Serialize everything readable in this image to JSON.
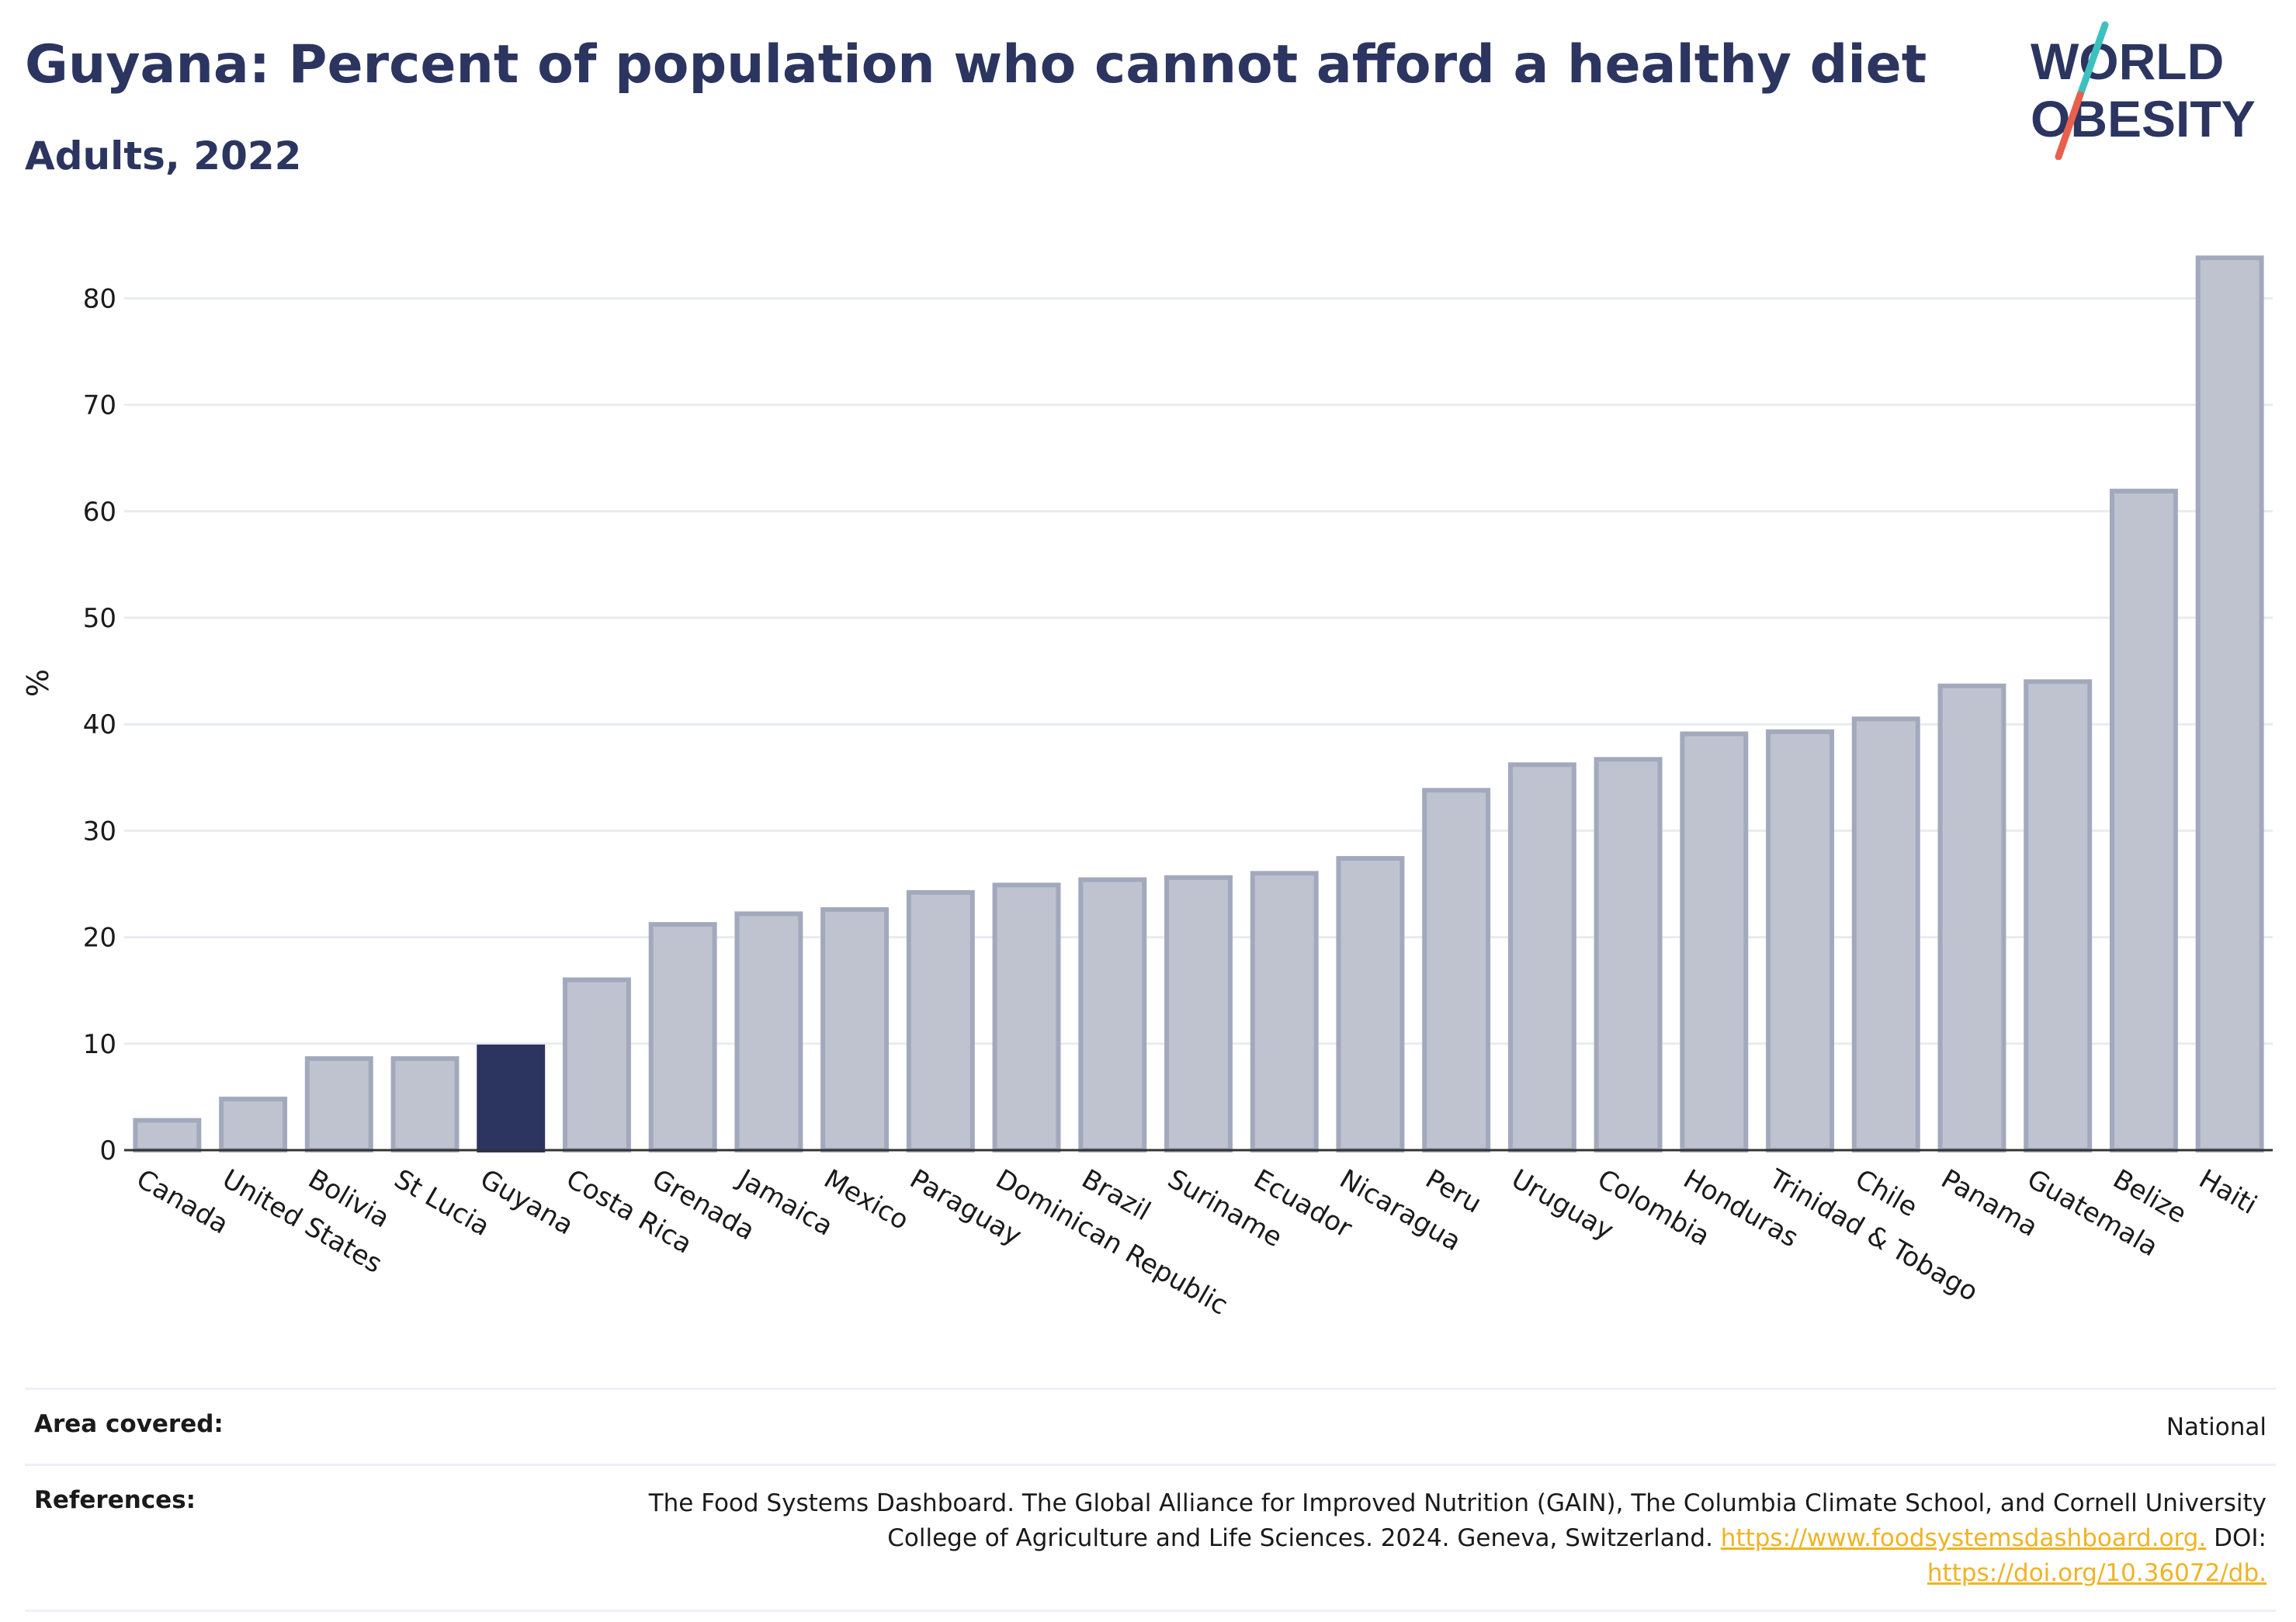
{
  "header": {
    "title": "Guyana: Percent of population who cannot afford a healthy diet",
    "subtitle": "Adults, 2022"
  },
  "logo": {
    "line1": "WORLD",
    "line2": "OBESITY",
    "slash_colors": [
      "#3cc1c0",
      "#e8604c"
    ]
  },
  "colors": {
    "bar_default": "#bfc3d0",
    "bar_border": "#a3a9bd",
    "bar_highlight": "#2b3560",
    "title": "#2b3560",
    "link": "#f0b323"
  },
  "chart_data": {
    "type": "bar",
    "title": "Guyana: Percent of population who cannot afford a healthy diet",
    "subtitle": "Adults, 2022",
    "xlabel": "",
    "ylabel": "%",
    "ylim": [
      0,
      86
    ],
    "yticks": [
      0,
      10,
      20,
      30,
      40,
      50,
      60,
      70,
      80
    ],
    "grid": true,
    "highlight": "Guyana",
    "categories": [
      "Canada",
      "United States",
      "Bolivia",
      "St Lucia",
      "Guyana",
      "Costa Rica",
      "Grenada",
      "Jamaica",
      "Mexico",
      "Paraguay",
      "Dominican Republic",
      "Brazil",
      "Suriname",
      "Ecuador",
      "Nicaragua",
      "Peru",
      "Uruguay",
      "Colombia",
      "Honduras",
      "Trinidad & Tobago",
      "Chile",
      "Panama",
      "Guatemala",
      "Belize",
      "Haiti"
    ],
    "values": [
      2.8,
      4.8,
      8.6,
      8.6,
      9.7,
      16.0,
      21.2,
      22.2,
      22.6,
      24.2,
      24.9,
      25.4,
      25.6,
      26.0,
      27.4,
      33.8,
      36.2,
      36.7,
      39.1,
      39.3,
      40.5,
      43.6,
      44.0,
      61.9,
      83.8
    ]
  },
  "footer": {
    "area_label": "Area covered:",
    "area_value": "National",
    "references_label": "References:",
    "references_text_1": "The Food Systems Dashboard. The Global Alliance for Improved Nutrition (GAIN), The Columbia Climate School, and Cornell University College of Agriculture and Life Sciences. 2024. Geneva, Switzerland.",
    "references_link_1": "https://www.foodsystemsdashboard.org.",
    "references_doi_label": "DOI:",
    "references_link_2": "https://doi.org/10.36072/db."
  }
}
